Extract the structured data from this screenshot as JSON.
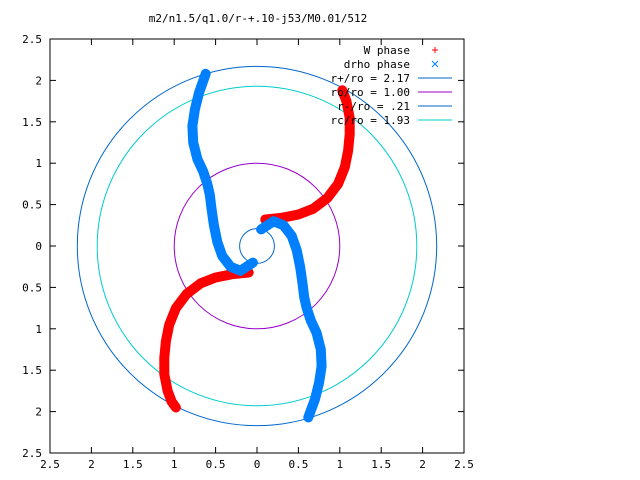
{
  "chart_data": {
    "type": "scatter",
    "title": "m2/n1.5/q1.0/r-+.10-j53/M0.01/512",
    "xlim": [
      -2.5,
      2.5
    ],
    "ylim": [
      -2.5,
      2.5
    ],
    "x_ticks": [
      -2.5,
      -2,
      -1.5,
      -1,
      -0.5,
      0,
      0.5,
      1,
      1.5,
      2,
      2.5
    ],
    "y_ticks": [
      -2.5,
      -2,
      -1.5,
      -1,
      -0.5,
      0,
      0.5,
      1,
      1.5,
      2,
      2.5
    ],
    "x_tick_labels": [
      "2.5",
      "2",
      "1.5",
      "1",
      "0.5",
      "0",
      "0.5",
      "1",
      "1.5",
      "2",
      "2.5"
    ],
    "y_tick_labels": [
      "2.5",
      "2",
      "1.5",
      "1",
      "0.5",
      "0",
      "0.5",
      "1",
      "1.5",
      "2",
      "2.5"
    ],
    "grid": false,
    "legend_position": "top-right",
    "series": [
      {
        "name": "W phase",
        "marker": "plus",
        "color": "#ff0000",
        "arms": [
          [
            [
              0.1,
              0.32
            ],
            [
              0.3,
              0.34
            ],
            [
              0.5,
              0.38
            ],
            [
              0.68,
              0.45
            ],
            [
              0.85,
              0.58
            ],
            [
              0.98,
              0.75
            ],
            [
              1.06,
              0.95
            ],
            [
              1.1,
              1.15
            ],
            [
              1.12,
              1.35
            ],
            [
              1.12,
              1.55
            ],
            [
              1.08,
              1.75
            ],
            [
              1.03,
              1.88
            ]
          ],
          [
            [
              -0.1,
              -0.32
            ],
            [
              -0.3,
              -0.34
            ],
            [
              -0.5,
              -0.38
            ],
            [
              -0.68,
              -0.45
            ],
            [
              -0.85,
              -0.58
            ],
            [
              -0.98,
              -0.75
            ],
            [
              -1.06,
              -0.95
            ],
            [
              -1.1,
              -1.15
            ],
            [
              -1.12,
              -1.35
            ],
            [
              -1.12,
              -1.55
            ],
            [
              -1.08,
              -1.75
            ],
            [
              -1.03,
              -1.88
            ],
            [
              -0.98,
              -1.95
            ]
          ]
        ]
      },
      {
        "name": "drho phase",
        "marker": "x",
        "color": "#0080ff",
        "arms": [
          [
            [
              0.05,
              0.2
            ],
            [
              0.2,
              0.3
            ],
            [
              0.32,
              0.25
            ],
            [
              0.42,
              0.12
            ],
            [
              0.48,
              -0.05
            ],
            [
              0.52,
              -0.25
            ],
            [
              0.55,
              -0.45
            ],
            [
              0.57,
              -0.62
            ],
            [
              0.6,
              -0.75
            ],
            [
              0.65,
              -0.9
            ],
            [
              0.72,
              -1.05
            ],
            [
              0.77,
              -1.25
            ],
            [
              0.78,
              -1.45
            ],
            [
              0.75,
              -1.65
            ],
            [
              0.7,
              -1.85
            ],
            [
              0.62,
              -2.07
            ]
          ],
          [
            [
              -0.05,
              -0.2
            ],
            [
              -0.2,
              -0.3
            ],
            [
              -0.32,
              -0.25
            ],
            [
              -0.42,
              -0.12
            ],
            [
              -0.48,
              0.05
            ],
            [
              -0.52,
              0.25
            ],
            [
              -0.55,
              0.45
            ],
            [
              -0.57,
              0.62
            ],
            [
              -0.6,
              0.75
            ],
            [
              -0.65,
              0.9
            ],
            [
              -0.72,
              1.05
            ],
            [
              -0.77,
              1.25
            ],
            [
              -0.78,
              1.45
            ],
            [
              -0.75,
              1.65
            ],
            [
              -0.7,
              1.85
            ],
            [
              -0.62,
              2.08
            ]
          ]
        ]
      }
    ],
    "circles": [
      {
        "label": "r+/ro = 2.17",
        "radius": 2.17,
        "color": "#0066cc"
      },
      {
        "label": "ro/ro = 1.00",
        "radius": 1.0,
        "color": "#9900cc"
      },
      {
        "label": "r-/ro = .21",
        "radius": 0.21,
        "color": "#0066cc"
      },
      {
        "label": "rc/ro = 1.93",
        "radius": 1.93,
        "color": "#00cccc"
      }
    ]
  }
}
